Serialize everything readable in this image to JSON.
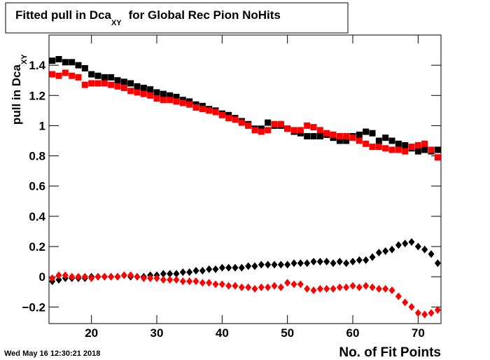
{
  "chart_data": {
    "type": "scatter",
    "title_parts": [
      "Fitted pull in Dca",
      "XY",
      "for Global Rec Pion NoHits"
    ],
    "y_label_parts": [
      "pull in Dca",
      "XY"
    ],
    "x_label": "No. of Fit Points",
    "timestamp": "Wed May 16 12:30:21 2018",
    "xlim": [
      13.5,
      73.5
    ],
    "ylim": [
      -0.31,
      1.6
    ],
    "xticks": [
      20,
      30,
      40,
      50,
      60,
      70
    ],
    "yticks": [
      {
        "value": -0.2,
        "label": "−0.2"
      },
      0,
      0.2,
      0.4,
      0.6,
      0.8,
      1,
      1.2,
      1.4
    ],
    "x": [
      14,
      15,
      16,
      17,
      18,
      19,
      20,
      21,
      22,
      23,
      24,
      25,
      26,
      27,
      28,
      29,
      30,
      31,
      32,
      33,
      34,
      35,
      36,
      37,
      38,
      39,
      40,
      41,
      42,
      43,
      44,
      45,
      46,
      47,
      48,
      49,
      50,
      51,
      52,
      53,
      54,
      55,
      56,
      57,
      58,
      59,
      60,
      61,
      62,
      63,
      64,
      65,
      66,
      67,
      68,
      69,
      70,
      71,
      72,
      73
    ],
    "series": [
      {
        "color": "#000000",
        "marker": "square",
        "values": [
          1.43,
          1.44,
          1.42,
          1.42,
          1.4,
          1.38,
          1.34,
          1.33,
          1.32,
          1.32,
          1.3,
          1.29,
          1.28,
          1.26,
          1.25,
          1.24,
          1.22,
          1.21,
          1.2,
          1.19,
          1.17,
          1.16,
          1.14,
          1.13,
          1.11,
          1.1,
          1.08,
          1.07,
          1.05,
          1.03,
          1.01,
          0.98,
          0.98,
          1.02,
          1.0,
          1.0,
          0.98,
          0.96,
          0.95,
          0.93,
          0.93,
          0.93,
          0.94,
          0.92,
          0.9,
          0.9,
          0.93,
          0.94,
          0.96,
          0.95,
          0.9,
          0.92,
          0.9,
          0.88,
          0.87,
          0.85,
          0.83,
          0.84,
          0.83,
          0.84
        ]
      },
      {
        "color": "#ff0000",
        "marker": "square",
        "values": [
          1.34,
          1.33,
          1.35,
          1.33,
          1.32,
          1.27,
          1.28,
          1.28,
          1.28,
          1.27,
          1.26,
          1.25,
          1.23,
          1.22,
          1.21,
          1.2,
          1.18,
          1.17,
          1.17,
          1.16,
          1.15,
          1.14,
          1.12,
          1.11,
          1.1,
          1.09,
          1.07,
          1.05,
          1.04,
          1.02,
          1.0,
          0.97,
          0.96,
          0.97,
          1.01,
          1.01,
          0.98,
          0.97,
          0.97,
          1.0,
          0.99,
          0.97,
          0.95,
          0.94,
          0.93,
          0.93,
          0.92,
          0.9,
          0.88,
          0.86,
          0.86,
          0.85,
          0.84,
          0.84,
          0.83,
          0.86,
          0.87,
          0.88,
          0.84,
          0.79
        ]
      },
      {
        "color": "#000000",
        "marker": "diamond",
        "values": [
          -0.03,
          -0.02,
          -0.01,
          -0.01,
          -0.01,
          -0.01,
          0.0,
          0.0,
          0.0,
          0.0,
          0.0,
          0.01,
          0.0,
          0.0,
          0.0,
          0.01,
          0.01,
          0.02,
          0.02,
          0.02,
          0.03,
          0.03,
          0.04,
          0.04,
          0.05,
          0.05,
          0.06,
          0.06,
          0.06,
          0.06,
          0.07,
          0.07,
          0.08,
          0.08,
          0.08,
          0.08,
          0.08,
          0.09,
          0.09,
          0.09,
          0.1,
          0.1,
          0.1,
          0.09,
          0.1,
          0.09,
          0.1,
          0.11,
          0.11,
          0.13,
          0.16,
          0.17,
          0.18,
          0.21,
          0.22,
          0.23,
          0.2,
          0.18,
          0.15,
          0.09
        ]
      },
      {
        "color": "#ff0000",
        "marker": "diamond",
        "values": [
          -0.01,
          0.01,
          0.01,
          0.0,
          0.0,
          0.0,
          -0.01,
          0.0,
          0.0,
          0.0,
          0.0,
          0.01,
          0.01,
          0.0,
          -0.01,
          -0.01,
          -0.01,
          -0.02,
          -0.02,
          -0.02,
          -0.03,
          -0.03,
          -0.03,
          -0.04,
          -0.04,
          -0.05,
          -0.05,
          -0.06,
          -0.06,
          -0.07,
          -0.07,
          -0.08,
          -0.07,
          -0.07,
          -0.06,
          -0.07,
          -0.04,
          -0.05,
          -0.05,
          -0.08,
          -0.09,
          -0.08,
          -0.08,
          -0.08,
          -0.07,
          -0.07,
          -0.06,
          -0.07,
          -0.06,
          -0.07,
          -0.08,
          -0.08,
          -0.09,
          -0.13,
          -0.17,
          -0.2,
          -0.24,
          -0.25,
          -0.24,
          -0.22
        ]
      }
    ]
  }
}
